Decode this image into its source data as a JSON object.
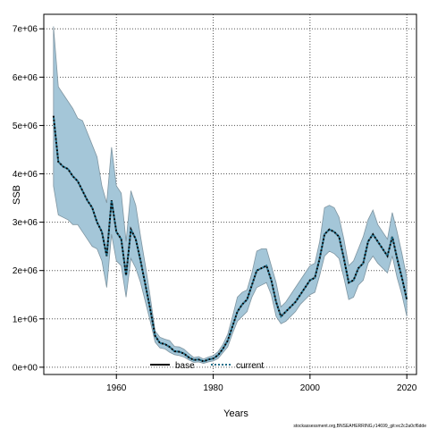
{
  "chart_data": {
    "type": "line",
    "xlabel": "Years",
    "ylabel": "SSB",
    "xlim": [
      1945,
      2022
    ],
    "ylim": [
      -150000,
      7300000
    ],
    "x_ticks": [
      1960,
      1980,
      2000,
      2020
    ],
    "x_tick_labels": [
      "1960",
      "1980",
      "2000",
      "2020"
    ],
    "y_ticks": [
      0,
      1000000,
      2000000,
      3000000,
      4000000,
      5000000,
      6000000,
      7000000
    ],
    "y_tick_labels": [
      "0e+00",
      "1e+06",
      "2e+06",
      "3e+06",
      "4e+06",
      "5e+06",
      "6e+06",
      "7e+06"
    ],
    "grid": true,
    "legend_position": "bottom",
    "colors": {
      "band_fill": "#a4c6d8",
      "band_stroke": "#7f95a1",
      "base_line": "#000000",
      "current_line": "#1f6f8b",
      "grid": "#555555"
    },
    "credit": "stockassessment.org,BNSEAHERRING,r14699_git:ec2c2a0cf6dde",
    "series": [
      {
        "name": "base",
        "style": "solid",
        "color": "#000000",
        "x": [],
        "y": []
      },
      {
        "name": "current",
        "style": "dotted",
        "color": "#1f6f8b",
        "x": [
          1947,
          1948,
          1949,
          1950,
          1951,
          1952,
          1953,
          1954,
          1955,
          1956,
          1957,
          1958,
          1959,
          1960,
          1961,
          1962,
          1963,
          1964,
          1965,
          1966,
          1967,
          1968,
          1969,
          1970,
          1971,
          1972,
          1973,
          1974,
          1975,
          1976,
          1977,
          1978,
          1979,
          1980,
          1981,
          1982,
          1983,
          1984,
          1985,
          1986,
          1987,
          1988,
          1989,
          1990,
          1991,
          1992,
          1993,
          1994,
          1995,
          1996,
          1997,
          1998,
          1999,
          2000,
          2001,
          2002,
          2003,
          2004,
          2005,
          2006,
          2007,
          2008,
          2009,
          2010,
          2011,
          2012,
          2013,
          2014,
          2015,
          2016,
          2017,
          2018,
          2019,
          2020
        ],
        "y": [
          5200000,
          4250000,
          4150000,
          4100000,
          3950000,
          3850000,
          3650000,
          3450000,
          3300000,
          3000000,
          2800000,
          2300000,
          3450000,
          2800000,
          2650000,
          1900000,
          2850000,
          2650000,
          2200000,
          1700000,
          1200000,
          650000,
          500000,
          480000,
          420000,
          330000,
          320000,
          280000,
          200000,
          150000,
          160000,
          120000,
          160000,
          180000,
          250000,
          380000,
          550000,
          850000,
          1150000,
          1300000,
          1400000,
          1700000,
          2000000,
          2050000,
          2100000,
          1800000,
          1350000,
          1050000,
          1150000,
          1250000,
          1350000,
          1500000,
          1650000,
          1800000,
          1850000,
          2250000,
          2750000,
          2850000,
          2800000,
          2700000,
          2250000,
          1750000,
          1800000,
          2050000,
          2150000,
          2600000,
          2750000,
          2600000,
          2450000,
          2300000,
          2700000,
          2250000,
          1850000,
          1400000
        ]
      }
    ],
    "ci_band": {
      "x": [
        1947,
        1948,
        1949,
        1950,
        1951,
        1952,
        1953,
        1954,
        1955,
        1956,
        1957,
        1958,
        1959,
        1960,
        1961,
        1962,
        1963,
        1964,
        1965,
        1966,
        1967,
        1968,
        1969,
        1970,
        1971,
        1972,
        1973,
        1974,
        1975,
        1976,
        1977,
        1978,
        1979,
        1980,
        1981,
        1982,
        1983,
        1984,
        1985,
        1986,
        1987,
        1988,
        1989,
        1990,
        1991,
        1992,
        1993,
        1994,
        1995,
        1996,
        1997,
        1998,
        1999,
        2000,
        2001,
        2002,
        2003,
        2004,
        2005,
        2006,
        2007,
        2008,
        2009,
        2010,
        2011,
        2012,
        2013,
        2014,
        2015,
        2016,
        2017,
        2018,
        2019,
        2020
      ],
      "upper": [
        7050000,
        5800000,
        5650000,
        5500000,
        5350000,
        5150000,
        5100000,
        4850000,
        4600000,
        4350000,
        3750000,
        3400000,
        4550000,
        3750000,
        3600000,
        2600000,
        3650000,
        3350000,
        2700000,
        2100000,
        1450000,
        750000,
        620000,
        580000,
        550000,
        430000,
        420000,
        370000,
        280000,
        200000,
        220000,
        170000,
        210000,
        240000,
        320000,
        470000,
        680000,
        1050000,
        1450000,
        1550000,
        1600000,
        1950000,
        2400000,
        2450000,
        2450000,
        2100000,
        1750000,
        1250000,
        1350000,
        1500000,
        1650000,
        1800000,
        1950000,
        2100000,
        2150000,
        2600000,
        3300000,
        3350000,
        3300000,
        3100000,
        2650000,
        2100000,
        2200000,
        2450000,
        2700000,
        3050000,
        3250000,
        2950000,
        2800000,
        2650000,
        3200000,
        2800000,
        2350000,
        1850000
      ],
      "lower": [
        3750000,
        3150000,
        3100000,
        3050000,
        2950000,
        2950000,
        2800000,
        2650000,
        2500000,
        2450000,
        2200000,
        1650000,
        2750000,
        2200000,
        2100000,
        1450000,
        2250000,
        2050000,
        1750000,
        1350000,
        950000,
        520000,
        400000,
        380000,
        310000,
        260000,
        240000,
        210000,
        150000,
        100000,
        110000,
        80000,
        110000,
        130000,
        180000,
        300000,
        420000,
        700000,
        950000,
        1050000,
        1150000,
        1450000,
        1650000,
        1700000,
        1750000,
        1500000,
        1050000,
        900000,
        950000,
        1050000,
        1150000,
        1300000,
        1400000,
        1500000,
        1550000,
        1900000,
        2300000,
        2400000,
        2350000,
        2250000,
        1850000,
        1400000,
        1450000,
        1700000,
        1800000,
        2150000,
        2300000,
        2150000,
        2050000,
        1950000,
        2300000,
        1850000,
        1500000,
        1050000
      ]
    }
  }
}
